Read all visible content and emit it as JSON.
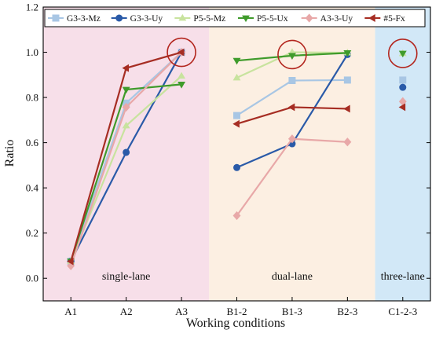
{
  "chart_data": {
    "type": "line",
    "xlabel": "Working conditions",
    "ylabel": "Ratio",
    "categories": [
      "A1",
      "A2",
      "A3",
      "B1-2",
      "B1-3",
      "B2-3",
      "C1-2-3"
    ],
    "ylim": [
      -0.1,
      1.2
    ],
    "yticks": [
      0.0,
      0.2,
      0.4,
      0.6,
      0.8,
      1.0,
      1.2
    ],
    "ytick_labels": [
      "0.0",
      "0.2",
      "0.4",
      "0.6",
      "0.8",
      "1.0",
      "1.2"
    ],
    "grid": false,
    "legend_position": "top",
    "regions": [
      {
        "label": "single-lane",
        "color": "#f7dfe9",
        "from": "A1",
        "to": "A3"
      },
      {
        "label": "dual-lane",
        "color": "#fcefe2",
        "from": "B1-2",
        "to": "B2-3"
      },
      {
        "label": "three-lane",
        "color": "#d2e8f7",
        "from": "C1-2-3",
        "to": "C1-2-3"
      }
    ],
    "series": [
      {
        "name": "G3-3-Mz",
        "color": "#a8c6e4",
        "marker": "square",
        "values": [
          0.075,
          0.775,
          1.0,
          0.72,
          0.875,
          0.877,
          0.877
        ]
      },
      {
        "name": "G3-3-Uy",
        "color": "#2a5aa8",
        "marker": "circle",
        "values": [
          0.075,
          0.557,
          1.0,
          0.49,
          0.595,
          0.99,
          0.845
        ]
      },
      {
        "name": "P5-5-Mz",
        "color": "#c8e39e",
        "marker": "triangle-up",
        "values": [
          0.075,
          0.675,
          0.895,
          0.887,
          1.0,
          0.998,
          0.995
        ]
      },
      {
        "name": "P5-5-Ux",
        "color": "#3f9b2b",
        "marker": "triangle-down",
        "values": [
          0.075,
          0.835,
          0.858,
          0.963,
          0.985,
          0.997,
          0.995
        ]
      },
      {
        "name": "A3-3-Uy",
        "color": "#e8a8a8",
        "marker": "diamond",
        "values": [
          0.055,
          0.757,
          1.0,
          0.277,
          0.617,
          0.603,
          0.782
        ]
      },
      {
        "name": "#5-Fx",
        "color": "#a62d23",
        "marker": "triangle-left",
        "values": [
          0.075,
          0.93,
          1.0,
          0.683,
          0.757,
          0.75,
          0.757
        ]
      }
    ],
    "connected_categories": [
      "A1",
      "A2",
      "A3"
    ],
    "connected_categories_2": [
      "B1-2",
      "B1-3",
      "B2-3"
    ],
    "highlights": [
      {
        "category": "A3",
        "y": 1.0,
        "color": "#b3261e"
      },
      {
        "category": "B1-3",
        "y": 0.99,
        "color": "#b3261e"
      },
      {
        "category": "C1-2-3",
        "y": 0.995,
        "color": "#b3261e"
      }
    ]
  }
}
